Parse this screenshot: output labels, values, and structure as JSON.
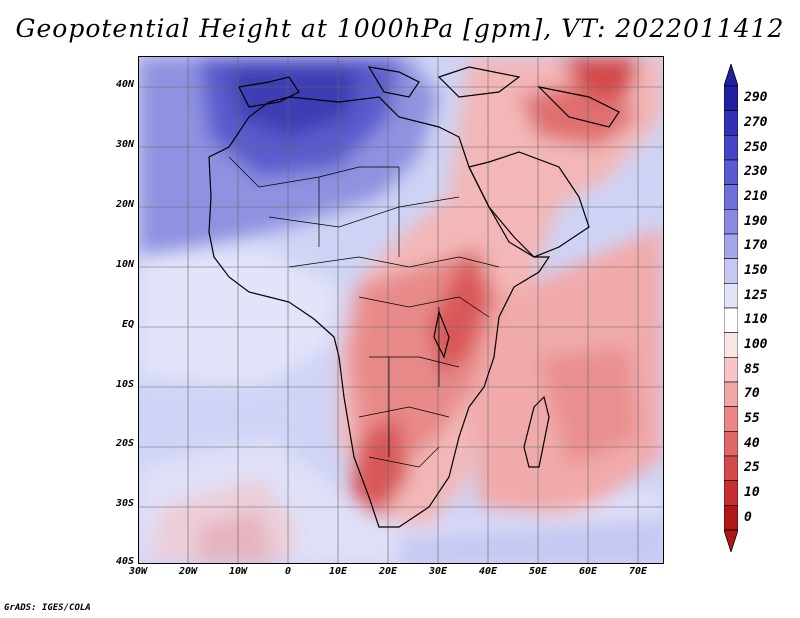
{
  "title": "Geopotential Height at 1000hPa [gpm], VT: 2022011412",
  "credit": "GrADS: IGES/COLA",
  "map": {
    "lat_labels": [
      "40N",
      "30N",
      "20N",
      "10N",
      "EQ",
      "10S",
      "20S",
      "30S",
      "40S"
    ],
    "lon_labels": [
      "30W",
      "20W",
      "10W",
      "0",
      "10E",
      "20E",
      "30E",
      "40E",
      "50E",
      "60E",
      "70E"
    ]
  },
  "colorbar": {
    "levels": [
      "290",
      "270",
      "250",
      "230",
      "210",
      "190",
      "170",
      "150",
      "125",
      "110",
      "100",
      "85",
      "70",
      "55",
      "40",
      "25",
      "10",
      "0"
    ],
    "colors": [
      "#2020a0",
      "#3030b8",
      "#4545c8",
      "#5a5ad2",
      "#7070da",
      "#8a8ae2",
      "#a5a5ea",
      "#c5c8f2",
      "#e2e4fa",
      "#ffffff",
      "#fbe4e4",
      "#f6c6c6",
      "#f0a6a6",
      "#ea8686",
      "#e06868",
      "#d44a4a",
      "#c63030",
      "#b01818"
    ]
  }
}
